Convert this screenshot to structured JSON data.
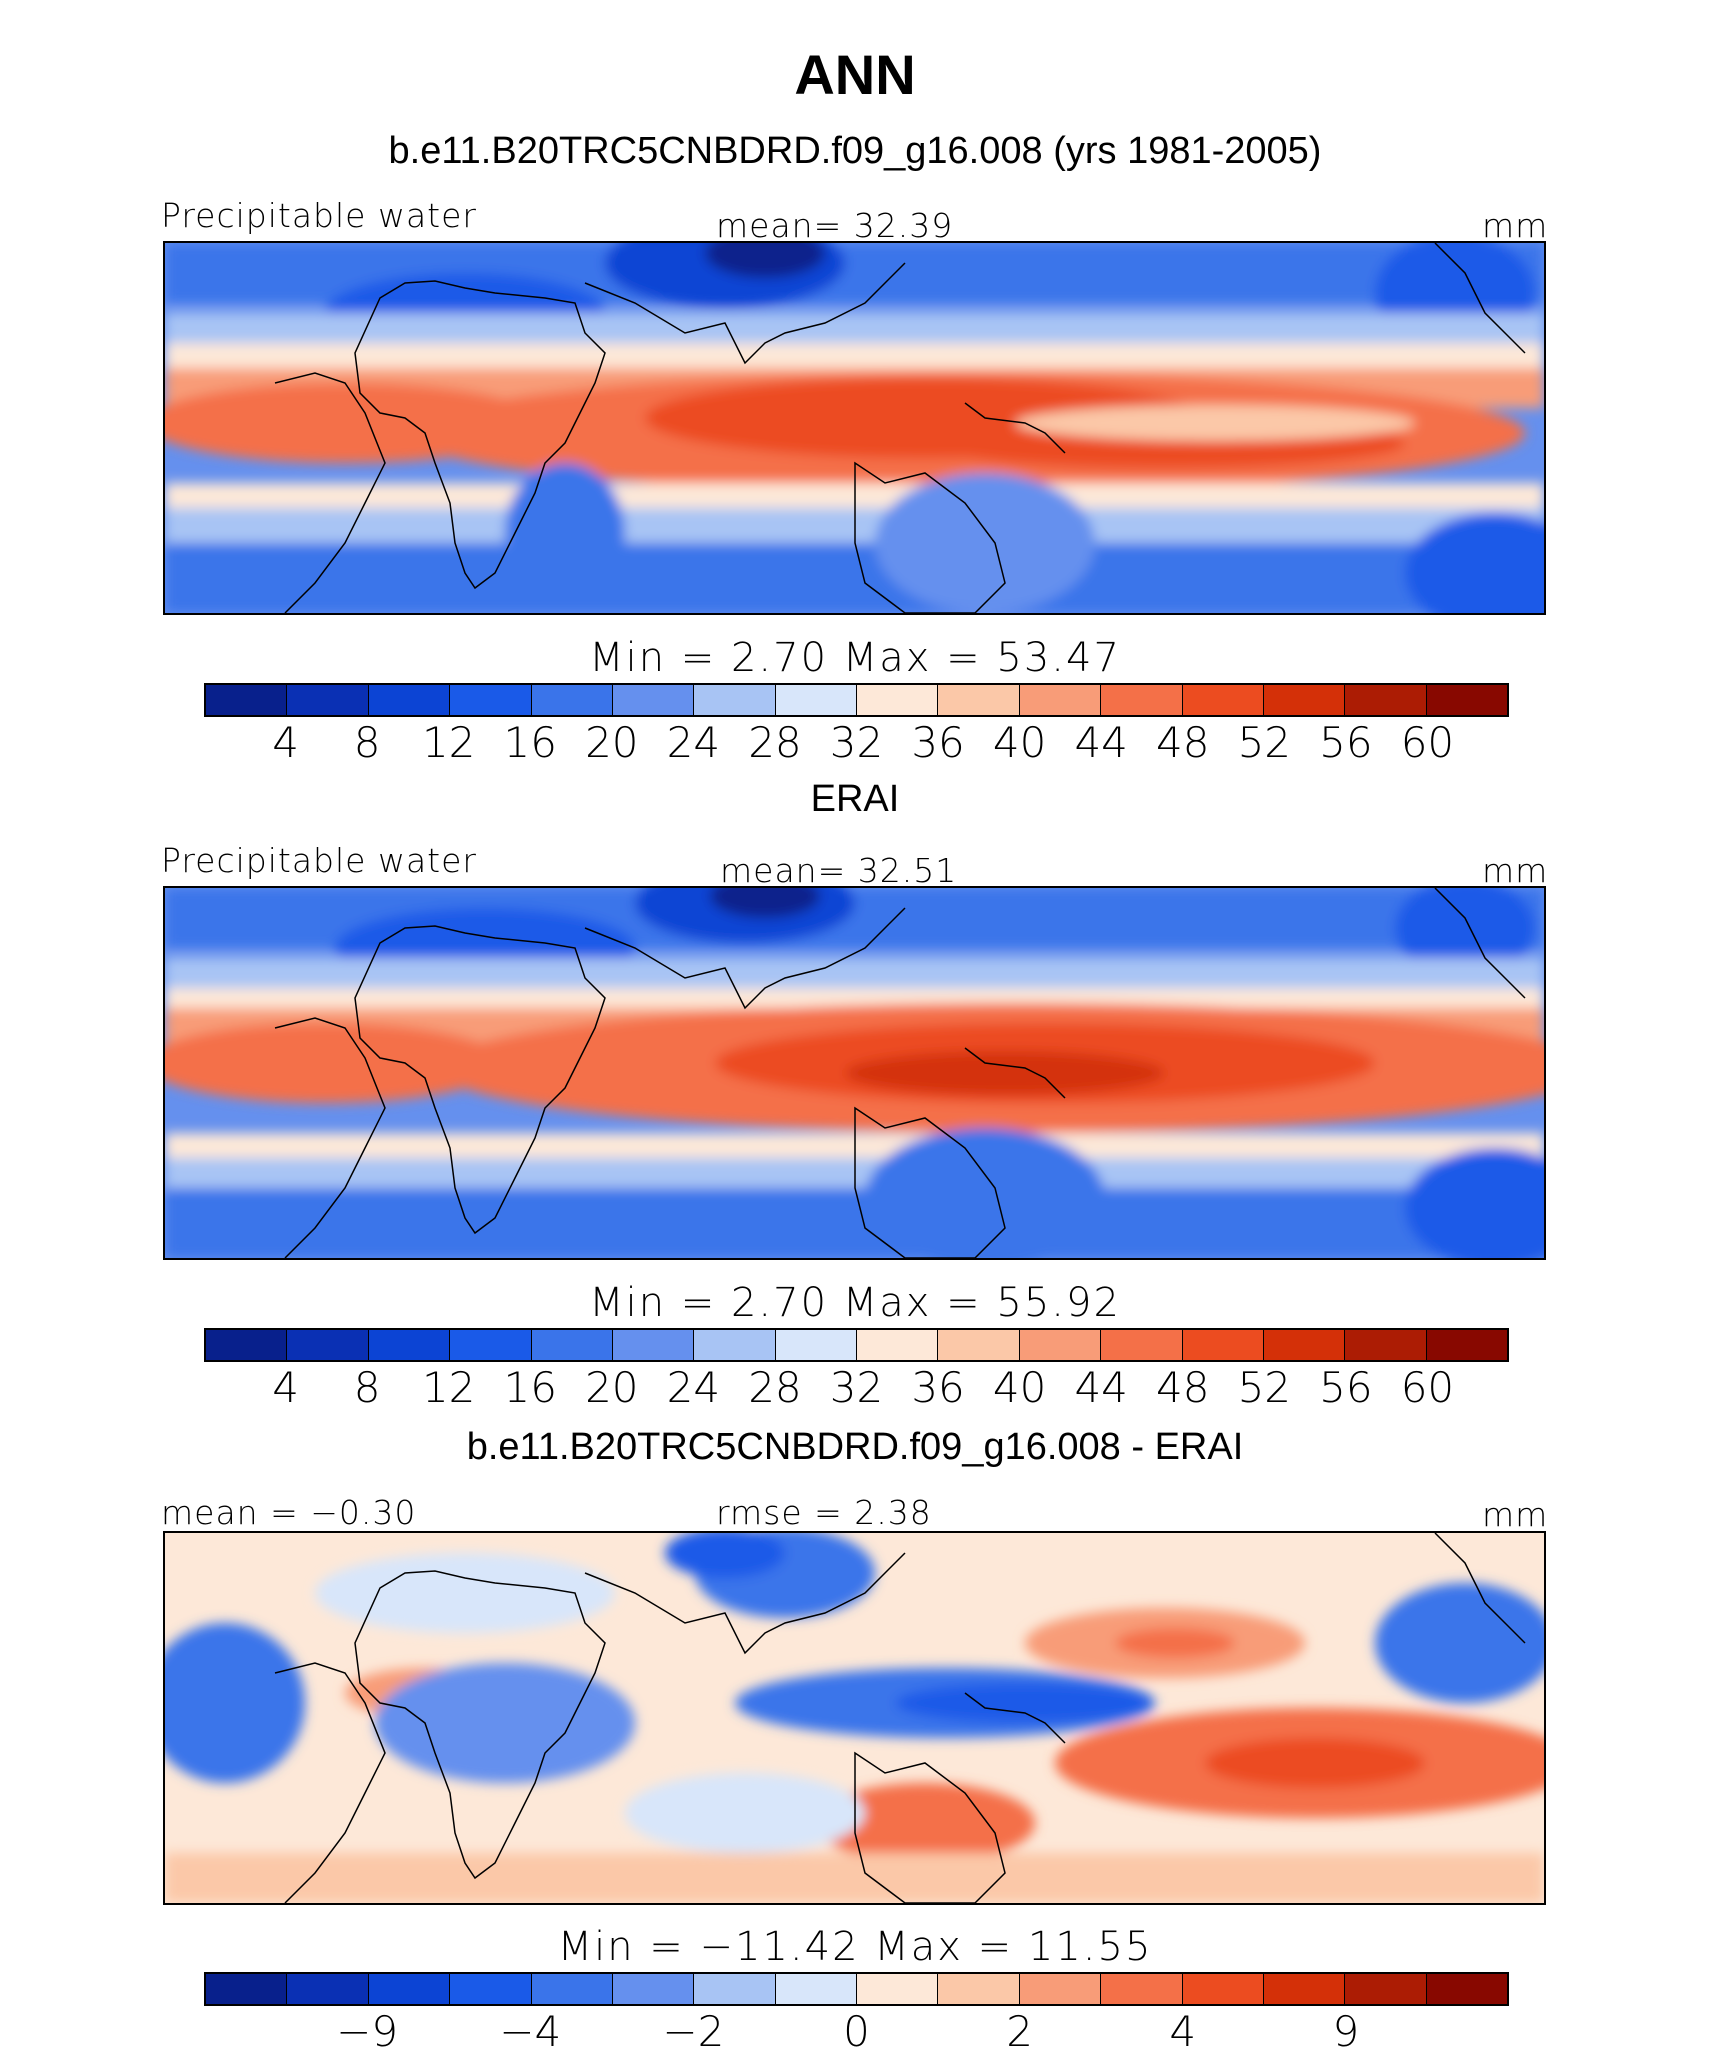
{
  "title": "ANN",
  "colors": [
    "#08208c",
    "#0a30b4",
    "#0c44d4",
    "#1a5ae8",
    "#3a74ea",
    "#6590ee",
    "#a8c4f4",
    "#d8e6fa",
    "#fde8d8",
    "#fbc8a8",
    "#f89c78",
    "#f47048",
    "#ec4c20",
    "#d43008",
    "#ac1c04",
    "#880800"
  ],
  "panels": [
    {
      "title": "b.e11.B20TRC5CNBDRD.f09_g16.008 (yrs 1981-2005)",
      "left_label": "Precipitable water",
      "center_label": "mean=   32.39",
      "units": "mm",
      "minmax": "Min =    2.70  Max =   53.47",
      "ticks": [
        "4",
        "8",
        "12",
        "16",
        "20",
        "24",
        "28",
        "32",
        "36",
        "40",
        "44",
        "48",
        "52",
        "56",
        "60"
      ]
    },
    {
      "title": "ERAI",
      "left_label": "Precipitable water",
      "center_label": "mean=   32.51",
      "units": "mm",
      "minmax": "Min =    2.70  Max =   55.92",
      "ticks": [
        "4",
        "8",
        "12",
        "16",
        "20",
        "24",
        "28",
        "32",
        "36",
        "40",
        "44",
        "48",
        "52",
        "56",
        "60"
      ]
    },
    {
      "title": "b.e11.B20TRC5CNBDRD.f09_g16.008 - ERAI",
      "left_label": "mean =  −0.30",
      "center_label": "rmse =    2.38",
      "units": "mm",
      "minmax": "Min = −11.42  Max =   11.55",
      "ticks": [
        "−9",
        "−4",
        "−2",
        "0",
        "2",
        "4",
        "9"
      ]
    }
  ],
  "chart_data": [
    {
      "type": "heatmap",
      "title": "b.e11.B20TRC5CNBDRD.f09_g16.008 (yrs 1981-2005)",
      "variable": "Precipitable water",
      "units": "mm",
      "mean": 32.39,
      "min": 2.7,
      "max": 53.47,
      "contour_levels": [
        4,
        8,
        12,
        16,
        20,
        24,
        28,
        32,
        36,
        40,
        44,
        48,
        52,
        56,
        60
      ]
    },
    {
      "type": "heatmap",
      "title": "ERAI",
      "variable": "Precipitable water",
      "units": "mm",
      "mean": 32.51,
      "min": 2.7,
      "max": 55.92,
      "contour_levels": [
        4,
        8,
        12,
        16,
        20,
        24,
        28,
        32,
        36,
        40,
        44,
        48,
        52,
        56,
        60
      ]
    },
    {
      "type": "heatmap",
      "title": "b.e11.B20TRC5CNBDRD.f09_g16.008 - ERAI",
      "units": "mm",
      "mean": -0.3,
      "rmse": 2.38,
      "min": -11.42,
      "max": 11.55,
      "tick_labels": [
        -9,
        -4,
        -2,
        0,
        2,
        4,
        9
      ]
    }
  ]
}
